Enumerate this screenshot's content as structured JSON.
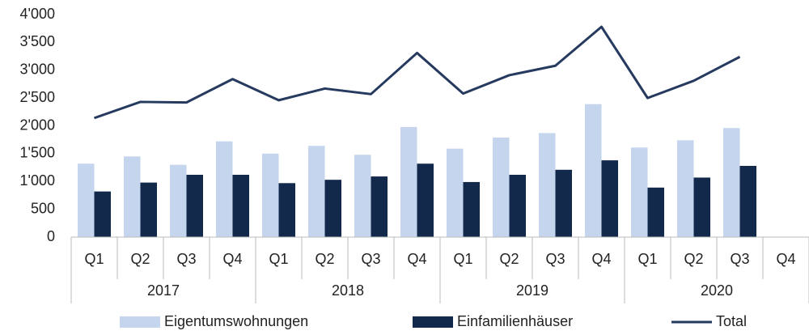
{
  "chart_data": {
    "type": "bar",
    "categories": [
      "Q1",
      "Q2",
      "Q3",
      "Q4",
      "Q1",
      "Q2",
      "Q3",
      "Q4",
      "Q1",
      "Q2",
      "Q3",
      "Q4",
      "Q1",
      "Q2",
      "Q3",
      "Q4"
    ],
    "year_groups": [
      "2017",
      "2018",
      "2019",
      "2020"
    ],
    "series": [
      {
        "name": "Eigentumswohnungen",
        "color": "#c6d5ee",
        "type": "bar",
        "values": [
          1320,
          1450,
          1300,
          1720,
          1500,
          1640,
          1480,
          1980,
          1590,
          1790,
          1870,
          2390,
          1610,
          1740,
          1960,
          null
        ]
      },
      {
        "name": "Einfamilienhäuser",
        "color": "#13294b",
        "type": "bar",
        "values": [
          820,
          980,
          1120,
          1120,
          970,
          1030,
          1090,
          1320,
          990,
          1120,
          1210,
          1380,
          890,
          1070,
          1280,
          null
        ]
      },
      {
        "name": "Total",
        "color": "#253a5e",
        "type": "line",
        "values": [
          2140,
          2430,
          2420,
          2840,
          2460,
          2670,
          2570,
          3310,
          2580,
          2910,
          3080,
          3780,
          2500,
          2810,
          3240,
          null
        ]
      }
    ],
    "ylim": [
      0,
      4000
    ],
    "yticks": [
      0,
      500,
      {
        "value": 1000,
        "label": "1'000"
      },
      {
        "value": 1500,
        "label": "1'500"
      },
      {
        "value": 2000,
        "label": "2'000"
      },
      {
        "value": 2500,
        "label": "2'500"
      },
      {
        "value": 3000,
        "label": "3'000"
      },
      {
        "value": 3500,
        "label": "3'500"
      },
      {
        "value": 4000,
        "label": "4'000"
      }
    ],
    "legend": "bottom"
  }
}
